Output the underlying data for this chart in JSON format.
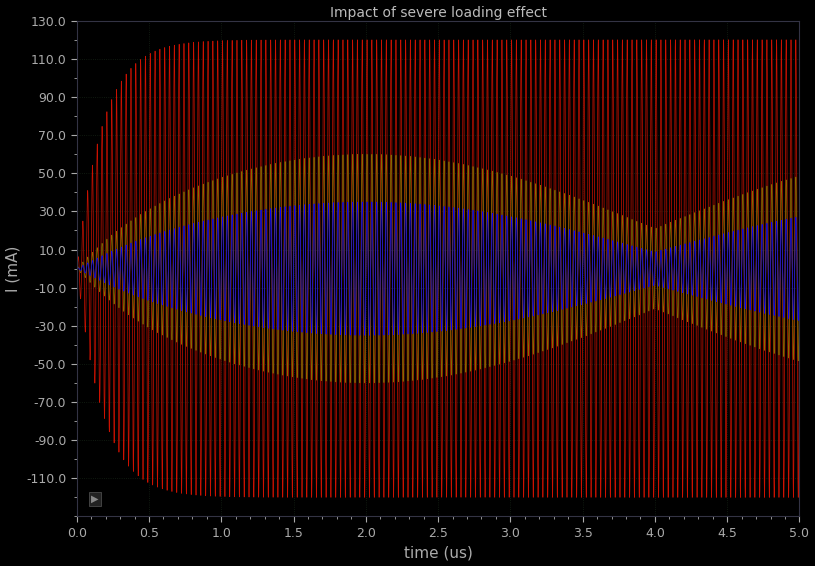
{
  "background_color": "#000000",
  "plot_bg_color": "#000000",
  "title": "Impact of severe loading effect",
  "title_color": "#bbbbbb",
  "xlabel": "time (us)",
  "ylabel": "I (mA)",
  "xlim": [
    0,
    5.0
  ],
  "ylim": [
    -130.0,
    130.0
  ],
  "yticks": [
    -110,
    -90,
    -70,
    -50,
    -30,
    -10,
    10,
    30,
    50,
    70,
    90,
    110,
    130
  ],
  "xticks": [
    0.0,
    0.5,
    1.0,
    1.5,
    2.0,
    2.5,
    3.0,
    3.5,
    4.0,
    4.5,
    5.0
  ],
  "tick_color": "#aaaaaa",
  "label_color": "#aaaaaa",
  "red_color": "#cc1100",
  "yellow_color": "#807000",
  "blue_color": "#0000ff",
  "carrier_freq_MHz": 30,
  "t_end_us": 5.0,
  "n_points": 15000,
  "linewidth": 0.5,
  "grid_color": "#1a2a1a",
  "spine_color": "#333344"
}
